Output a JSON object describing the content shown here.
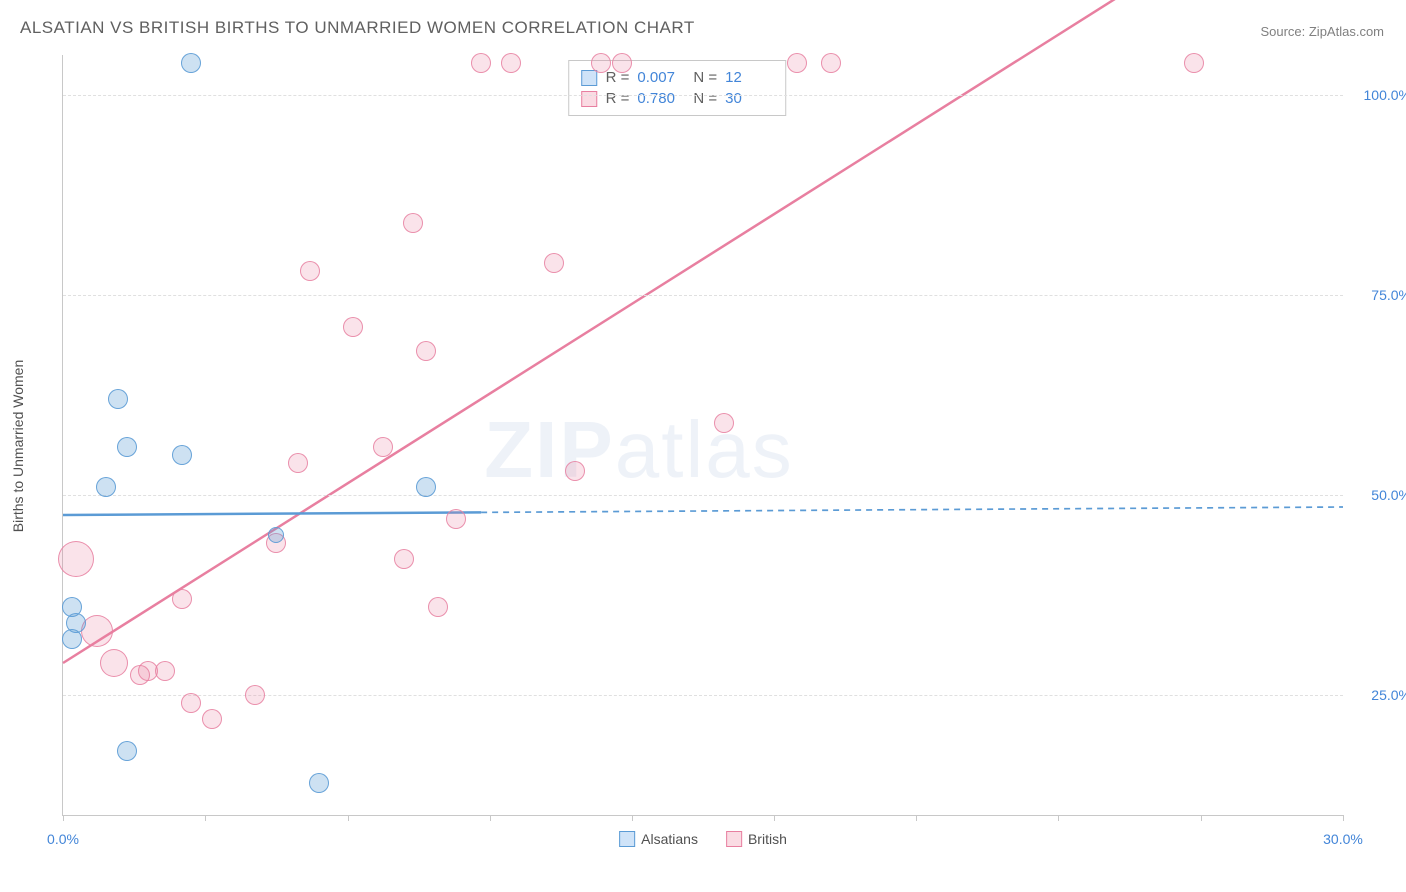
{
  "title": "ALSATIAN VS BRITISH BIRTHS TO UNMARRIED WOMEN CORRELATION CHART",
  "source": "Source: ZipAtlas.com",
  "y_axis_title": "Births to Unmarried Women",
  "watermark_bold": "ZIP",
  "watermark_rest": "atlas",
  "chart": {
    "type": "scatter",
    "xlim": [
      0,
      30
    ],
    "ylim": [
      10,
      105
    ],
    "x_ticks": [
      0,
      3.33,
      6.67,
      10,
      13.33,
      16.67,
      20,
      23.33,
      26.67,
      30
    ],
    "x_tick_labels": {
      "0": "0.0%",
      "30": "30.0%"
    },
    "y_ticks": [
      25,
      50,
      75,
      100
    ],
    "y_tick_labels": {
      "25": "25.0%",
      "50": "50.0%",
      "75": "75.0%",
      "100": "100.0%"
    },
    "grid_color": "#e0e0e0",
    "border_color": "#c8c8c8",
    "background_color": "#ffffff",
    "marker_base_radius": 10,
    "series": {
      "alsatians": {
        "label": "Alsatians",
        "color_fill": "rgba(91,155,213,0.30)",
        "color_stroke": "#5b9bd5",
        "trend": {
          "y_at_x0": 47.5,
          "y_at_x30": 48.5,
          "solid_until_x": 9.8,
          "line_width": 2.5
        },
        "points": [
          {
            "x": 0.2,
            "y": 36,
            "r": 10
          },
          {
            "x": 0.2,
            "y": 32,
            "r": 10
          },
          {
            "x": 0.3,
            "y": 34,
            "r": 10
          },
          {
            "x": 1.0,
            "y": 51,
            "r": 10
          },
          {
            "x": 1.3,
            "y": 62,
            "r": 10
          },
          {
            "x": 1.5,
            "y": 56,
            "r": 10
          },
          {
            "x": 1.5,
            "y": 18,
            "r": 10
          },
          {
            "x": 2.8,
            "y": 55,
            "r": 10
          },
          {
            "x": 3.0,
            "y": 104,
            "r": 10
          },
          {
            "x": 6.0,
            "y": 14,
            "r": 10
          },
          {
            "x": 8.5,
            "y": 51,
            "r": 10
          },
          {
            "x": 5.0,
            "y": 45,
            "r": 8
          }
        ]
      },
      "british": {
        "label": "British",
        "color_fill": "rgba(232,127,160,0.22)",
        "color_stroke": "#e87fa0",
        "trend": {
          "y_at_x0": 29,
          "y_at_x30": 130,
          "solid_until_x": 30,
          "line_width": 2.5
        },
        "points": [
          {
            "x": 0.3,
            "y": 42,
            "r": 18
          },
          {
            "x": 0.8,
            "y": 33,
            "r": 16
          },
          {
            "x": 1.2,
            "y": 29,
            "r": 14
          },
          {
            "x": 1.8,
            "y": 27.5,
            "r": 10
          },
          {
            "x": 2.0,
            "y": 28,
            "r": 10
          },
          {
            "x": 2.4,
            "y": 28,
            "r": 10
          },
          {
            "x": 2.8,
            "y": 37,
            "r": 10
          },
          {
            "x": 3.0,
            "y": 24,
            "r": 10
          },
          {
            "x": 3.5,
            "y": 22,
            "r": 10
          },
          {
            "x": 4.5,
            "y": 25,
            "r": 10
          },
          {
            "x": 5.0,
            "y": 44,
            "r": 10
          },
          {
            "x": 5.5,
            "y": 54,
            "r": 10
          },
          {
            "x": 5.8,
            "y": 78,
            "r": 10
          },
          {
            "x": 6.8,
            "y": 71,
            "r": 10
          },
          {
            "x": 7.5,
            "y": 56,
            "r": 10
          },
          {
            "x": 8.0,
            "y": 42,
            "r": 10
          },
          {
            "x": 8.2,
            "y": 84,
            "r": 10
          },
          {
            "x": 8.5,
            "y": 68,
            "r": 10
          },
          {
            "x": 8.8,
            "y": 36,
            "r": 10
          },
          {
            "x": 9.2,
            "y": 47,
            "r": 10
          },
          {
            "x": 9.8,
            "y": 104,
            "r": 10
          },
          {
            "x": 10.5,
            "y": 104,
            "r": 10
          },
          {
            "x": 11.5,
            "y": 79,
            "r": 10
          },
          {
            "x": 12.0,
            "y": 53,
            "r": 10
          },
          {
            "x": 12.6,
            "y": 104,
            "r": 10
          },
          {
            "x": 13.1,
            "y": 104,
            "r": 10
          },
          {
            "x": 15.5,
            "y": 59,
            "r": 10
          },
          {
            "x": 17.2,
            "y": 104,
            "r": 10
          },
          {
            "x": 18.0,
            "y": 104,
            "r": 10
          },
          {
            "x": 26.5,
            "y": 104,
            "r": 10
          }
        ]
      }
    }
  },
  "stats": {
    "rows": [
      {
        "swatch": "blue",
        "R": "0.007",
        "N": "12"
      },
      {
        "swatch": "pink",
        "R": "0.780",
        "N": "30"
      }
    ],
    "labels": {
      "R": "R =",
      "N": "N ="
    }
  },
  "legend": {
    "items": [
      {
        "swatch": "blue",
        "label": "Alsatians"
      },
      {
        "swatch": "pink",
        "label": "British"
      }
    ]
  }
}
